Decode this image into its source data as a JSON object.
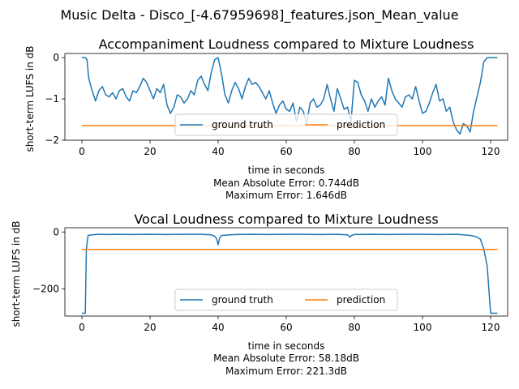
{
  "figure": {
    "suptitle": "Music Delta - Disco_[-4.67959698]_features.json_Mean_value"
  },
  "colors": {
    "ground_truth": "#1f77b4",
    "prediction": "#ff7f0e",
    "axes": "#000000",
    "legend_border": "#cccccc"
  },
  "chart_data": [
    {
      "type": "line",
      "title": "Accompaniment Loudness compared to Mixture Loudness",
      "xlabel": "time in seconds",
      "ylabel": "short-term LUFS in dB",
      "xlim": [
        -5,
        125
      ],
      "ylim": [
        -2.0,
        0.1
      ],
      "xticks": [
        0,
        20,
        40,
        60,
        80,
        100,
        120
      ],
      "yticks": [
        0,
        -1,
        -2
      ],
      "legend": {
        "placement": "lower-center",
        "columns": 2
      },
      "stats": [
        "Mean Absolute Error: 0.744dB",
        "Maximum Error: 1.646dB"
      ],
      "series": [
        {
          "name": "ground truth",
          "x": [
            0,
            1,
            1.5,
            2,
            3,
            4,
            5,
            6,
            7,
            8,
            9,
            10,
            11,
            12,
            13,
            14,
            15,
            16,
            17,
            18,
            19,
            20,
            21,
            22,
            23,
            24,
            25,
            26,
            27,
            28,
            29,
            30,
            31,
            32,
            33,
            34,
            35,
            36,
            37,
            38,
            39,
            40,
            41,
            42,
            43,
            44,
            45,
            46,
            47,
            48,
            49,
            50,
            51,
            52,
            53,
            54,
            55,
            56,
            57,
            58,
            59,
            60,
            61,
            62,
            63,
            64,
            65,
            66,
            67,
            68,
            69,
            70,
            71,
            72,
            73,
            74,
            75,
            76,
            77,
            78,
            79,
            80,
            81,
            82,
            83,
            84,
            85,
            86,
            87,
            88,
            89,
            90,
            91,
            92,
            93,
            94,
            95,
            96,
            97,
            98,
            99,
            100,
            101,
            102,
            103,
            104,
            105,
            106,
            107,
            108,
            109,
            110,
            111,
            112,
            113,
            114,
            115,
            116,
            117,
            118,
            119,
            120,
            121,
            122
          ],
          "y": [
            0,
            0,
            -0.05,
            -0.5,
            -0.8,
            -1.05,
            -0.8,
            -0.7,
            -0.9,
            -0.95,
            -0.85,
            -1.0,
            -0.8,
            -0.75,
            -0.95,
            -1.05,
            -0.8,
            -0.85,
            -0.7,
            -0.5,
            -0.6,
            -0.8,
            -1.0,
            -0.75,
            -0.85,
            -0.65,
            -1.15,
            -1.35,
            -1.2,
            -0.9,
            -0.95,
            -1.1,
            -1.0,
            -0.8,
            -0.9,
            -0.55,
            -0.45,
            -0.65,
            -0.8,
            -0.35,
            -0.05,
            0,
            -0.4,
            -0.9,
            -1.1,
            -0.8,
            -0.6,
            -0.75,
            -1.0,
            -0.7,
            -0.5,
            -0.65,
            -0.6,
            -0.7,
            -0.85,
            -1.0,
            -0.8,
            -1.1,
            -1.35,
            -1.15,
            -1.05,
            -1.25,
            -1.3,
            -1.1,
            -1.55,
            -1.2,
            -1.3,
            -1.6,
            -1.1,
            -1.0,
            -1.2,
            -1.15,
            -1.0,
            -0.65,
            -1.0,
            -1.3,
            -0.75,
            -1.0,
            -1.25,
            -1.2,
            -1.55,
            -0.55,
            -0.6,
            -0.9,
            -1.05,
            -1.3,
            -1.0,
            -1.2,
            -1.05,
            -0.95,
            -1.15,
            -0.5,
            -0.8,
            -1.0,
            -1.1,
            -1.2,
            -0.95,
            -0.9,
            -1.0,
            -0.7,
            -1.05,
            -1.35,
            -1.3,
            -1.1,
            -0.85,
            -0.65,
            -1.05,
            -1.0,
            -1.3,
            -1.2,
            -1.55,
            -1.75,
            -1.85,
            -1.6,
            -1.65,
            -1.8,
            -1.3,
            -0.95,
            -0.6,
            -0.1,
            0,
            0,
            0,
            0
          ]
        },
        {
          "name": "prediction",
          "x": [
            0,
            122
          ],
          "y": [
            -1.646,
            -1.646
          ]
        }
      ]
    },
    {
      "type": "line",
      "title": "Vocal Loudness compared to Mixture Loudness",
      "xlabel": "time in seconds",
      "ylabel": "short-term LUFS in dB",
      "xlim": [
        -5,
        125
      ],
      "ylim": [
        -295,
        15
      ],
      "xticks": [
        0,
        20,
        40,
        60,
        80,
        100,
        120
      ],
      "yticks": [
        0,
        -200
      ],
      "legend": {
        "placement": "lower-center",
        "columns": 2
      },
      "stats": [
        "Mean Absolute Error: 58.18dB",
        "Maximum Error: 221.3dB"
      ],
      "series": [
        {
          "name": "ground truth",
          "x": [
            0,
            1,
            1.3,
            1.8,
            3,
            5,
            8,
            10,
            15,
            20,
            25,
            30,
            35,
            38,
            39,
            39.6,
            40,
            40.4,
            41,
            45,
            50,
            55,
            60,
            65,
            70,
            75,
            78,
            78.7,
            79.2,
            80,
            85,
            90,
            95,
            100,
            105,
            110,
            112,
            114,
            115,
            116,
            117,
            118,
            119,
            120,
            121,
            122
          ],
          "y": [
            -285,
            -285,
            -60,
            -12,
            -10,
            -8,
            -9,
            -8,
            -9,
            -8,
            -9,
            -8,
            -8,
            -10,
            -15,
            -25,
            -45,
            -22,
            -12,
            -9,
            -8,
            -9,
            -8,
            -8,
            -9,
            -8,
            -10,
            -18,
            -12,
            -9,
            -8,
            -9,
            -8,
            -8,
            -9,
            -8,
            -10,
            -12,
            -14,
            -18,
            -25,
            -60,
            -120,
            -285,
            -285,
            -285
          ]
        },
        {
          "name": "prediction",
          "x": [
            0,
            122
          ],
          "y": [
            -61,
            -61
          ]
        }
      ]
    }
  ]
}
